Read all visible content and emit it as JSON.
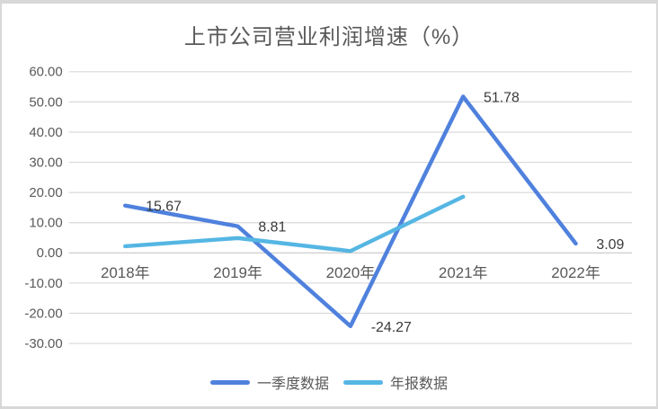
{
  "chart_data": {
    "type": "line",
    "title": "上市公司营业利润增速（%）",
    "categories": [
      "2018年",
      "2019年",
      "2020年",
      "2021年",
      "2022年"
    ],
    "series": [
      {
        "name": "一季度数据",
        "color": "#4f81dd",
        "values": [
          15.67,
          8.81,
          -24.27,
          51.78,
          3.09
        ],
        "labels": [
          "15.67",
          "8.81",
          "-24.27",
          "51.78",
          "3.09"
        ]
      },
      {
        "name": "年报数据",
        "color": "#55b6e3",
        "values": [
          2.2,
          4.9,
          0.6,
          18.6,
          null
        ],
        "labels": null
      }
    ],
    "ylim": [
      -30,
      60
    ],
    "ytick_step": 10,
    "yticks": [
      {
        "value": 60,
        "label": "60.00"
      },
      {
        "value": 50,
        "label": "50.00"
      },
      {
        "value": 40,
        "label": "40.00"
      },
      {
        "value": 30,
        "label": "30.00"
      },
      {
        "value": 20,
        "label": "20.00"
      },
      {
        "value": 10,
        "label": "10.00"
      },
      {
        "value": 0,
        "label": "0.00"
      },
      {
        "value": -10,
        "label": "-10.00"
      },
      {
        "value": -20,
        "label": "-20.00"
      },
      {
        "value": -30,
        "label": "-30.00"
      }
    ],
    "grid": true,
    "legend_position": "bottom",
    "colors": {
      "gridline": "#d9d9d9",
      "axis_line": "#c8c8c8",
      "tick_text": "#595959",
      "category_text": "#595959",
      "data_label": "#3a3a3a",
      "title_text": "#595959",
      "background": "#ffffff",
      "border": "#d8d8d8"
    }
  }
}
